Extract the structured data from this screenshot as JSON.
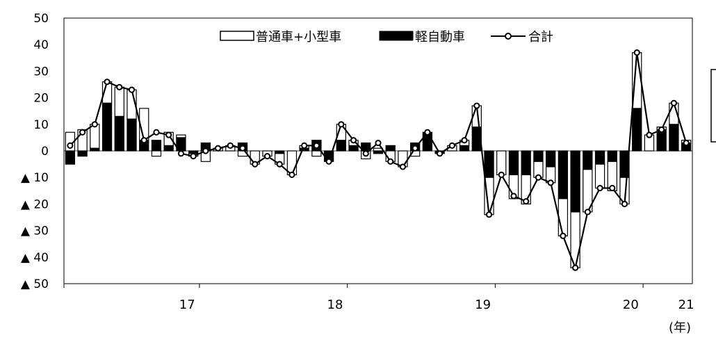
{
  "chart_data": {
    "type": "bar",
    "stacked": true,
    "x_categories": [
      "17",
      "18",
      "19",
      "20",
      "21"
    ],
    "x_unit": "(年)",
    "y_tick_labels": [
      "50",
      "40",
      "30",
      "20",
      "10",
      "0",
      "▲ 10",
      "▲ 20",
      "▲ 30",
      "▲ 40",
      "▲ 50"
    ],
    "ylim": [
      -50,
      50
    ],
    "legend_position": "top",
    "colors": {
      "normal": "#ffffff",
      "kei": "#000000",
      "total": "#000000"
    },
    "series": [
      {
        "name": "普通車+小型車",
        "type": "bar",
        "values": [
          7,
          8,
          9,
          8,
          11,
          11,
          12,
          -2,
          5,
          1,
          -1,
          -4,
          1,
          2,
          -2,
          -5,
          -2,
          -4,
          -9,
          1,
          -2,
          0,
          6,
          2,
          -3,
          1,
          -4,
          -6,
          -2,
          0,
          0,
          2,
          2,
          8,
          -14,
          -9,
          -9,
          -11,
          -6,
          -6,
          -14,
          -21,
          -16,
          -9,
          -11,
          -10,
          21,
          6,
          1,
          8,
          1
        ],
        "months": [
          "2016-05",
          "2016-06",
          "2016-07",
          "2016-08",
          "2016-09",
          "2016-10",
          "2016-11",
          "2016-12",
          "2017-01",
          "2017-02",
          "2017-03",
          "2017-04",
          "2017-05",
          "2017-06",
          "2017-07",
          "2017-08",
          "2017-09",
          "2017-10",
          "2017-11",
          "2017-12",
          "2018-01",
          "2018-02",
          "2018-03",
          "2018-04",
          "2018-05",
          "2018-06",
          "2018-07",
          "2018-08",
          "2018-09",
          "2018-10",
          "2018-11",
          "2018-12",
          "2019-01",
          "2019-02",
          "2019-03",
          "2019-04",
          "2019-05",
          "2019-06",
          "2019-07",
          "2019-08",
          "2019-09",
          "2019-10",
          "2019-11",
          "2019-12",
          "2020-01",
          "2020-02",
          "2020-03",
          "2020-04",
          "2020-05",
          "2020-06",
          "2020-07"
        ]
      },
      {
        "name": "軽自動車",
        "type": "bar",
        "values": [
          -5,
          -2,
          1,
          18,
          13,
          12,
          4,
          4,
          2,
          5,
          -1,
          3,
          0,
          0,
          3,
          0,
          0,
          -1,
          0,
          1,
          4,
          -4,
          4,
          2,
          3,
          -1,
          2,
          0,
          3,
          7,
          -1,
          0,
          2,
          9,
          -10,
          0,
          -9,
          -9,
          -4,
          -6,
          -18,
          -23,
          -7,
          -5,
          -4,
          -10,
          16,
          0,
          8,
          10,
          3
        ],
        "months": [
          "2016-05",
          "2016-06",
          "2016-07",
          "2016-08",
          "2016-09",
          "2016-10",
          "2016-11",
          "2016-12",
          "2017-01",
          "2017-02",
          "2017-03",
          "2017-04",
          "2017-05",
          "2017-06",
          "2017-07",
          "2017-08",
          "2017-09",
          "2017-10",
          "2017-11",
          "2017-12",
          "2018-01",
          "2018-02",
          "2018-03",
          "2018-04",
          "2018-05",
          "2018-06",
          "2018-07",
          "2018-08",
          "2018-09",
          "2018-10",
          "2018-11",
          "2018-12",
          "2019-01",
          "2019-02",
          "2019-03",
          "2019-04",
          "2019-05",
          "2019-06",
          "2019-07",
          "2019-08",
          "2019-09",
          "2019-10",
          "2019-11",
          "2019-12",
          "2020-01",
          "2020-02",
          "2020-03",
          "2020-04",
          "2020-05",
          "2020-06",
          "2020-07"
        ]
      },
      {
        "name": "合計",
        "type": "line",
        "values": [
          2,
          7,
          10,
          26,
          24,
          23,
          4,
          7,
          6,
          -1,
          -2,
          0,
          1,
          2,
          1,
          -5,
          -2,
          -5,
          -9,
          2,
          2,
          -4,
          10,
          4,
          -1,
          3,
          -4,
          -6,
          1,
          7,
          -1,
          2,
          4,
          17,
          -24,
          -9,
          -17,
          -19,
          -10,
          -12,
          -32,
          -44,
          -23,
          -14,
          -14,
          -20,
          37,
          6,
          8,
          18,
          3
        ],
        "months": [
          "2016-05",
          "2016-06",
          "2016-07",
          "2016-08",
          "2016-09",
          "2016-10",
          "2016-11",
          "2016-12",
          "2017-01",
          "2017-02",
          "2017-03",
          "2017-04",
          "2017-05",
          "2017-06",
          "2017-07",
          "2017-08",
          "2017-09",
          "2017-10",
          "2017-11",
          "2017-12",
          "2018-01",
          "2018-02",
          "2018-03",
          "2018-04",
          "2018-05",
          "2018-06",
          "2018-07",
          "2018-08",
          "2018-09",
          "2018-10",
          "2018-11",
          "2018-12",
          "2019-01",
          "2019-02",
          "2019-03",
          "2019-04",
          "2019-05",
          "2019-06",
          "2019-07",
          "2019-08",
          "2019-09",
          "2019-10",
          "2019-11",
          "2019-12",
          "2020-01",
          "2020-02",
          "2020-03",
          "2020-04",
          "2020-05",
          "2020-06",
          "2020-07"
        ]
      }
    ]
  }
}
